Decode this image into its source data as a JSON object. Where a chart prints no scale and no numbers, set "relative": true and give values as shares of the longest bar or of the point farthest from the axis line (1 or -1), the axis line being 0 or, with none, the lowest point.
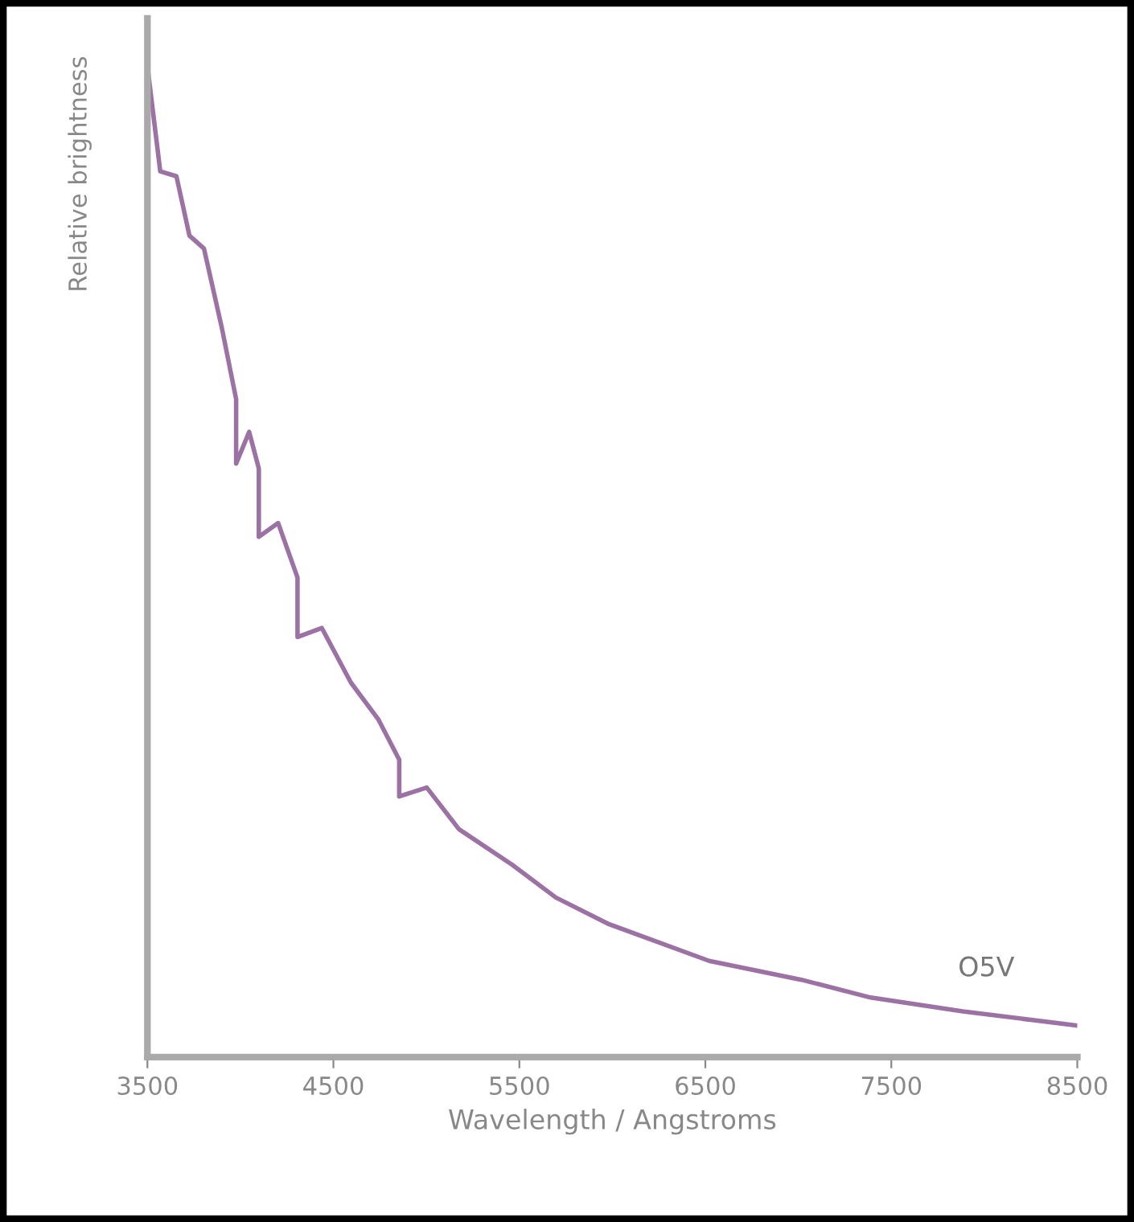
{
  "chart_data": {
    "type": "line",
    "relative": true,
    "xlabel": "Wavelength / Angstroms",
    "ylabel": "Relative brightness",
    "xlim": [
      3500,
      8500
    ],
    "xticks": [
      3500,
      4500,
      5500,
      6500,
      7500,
      8500
    ],
    "grid": false,
    "legend": false,
    "marker": "none",
    "line_style": "solid",
    "tick_labels": "x",
    "series": [
      {
        "name": "O5V",
        "color": "#9c72a4",
        "x": [
          3500,
          3569,
          3656,
          3726,
          3804,
          3899,
          3977,
          3977,
          4047,
          4099,
          4099,
          4203,
          4307,
          4307,
          4438,
          4594,
          4741,
          4854,
          4854,
          5002,
          5175,
          5462,
          5696,
          5983,
          6521,
          7016,
          7389,
          7884,
          8491
        ],
        "values": [
          1.0,
          0.894,
          0.889,
          0.829,
          0.816,
          0.737,
          0.664,
          0.599,
          0.631,
          0.594,
          0.525,
          0.539,
          0.484,
          0.424,
          0.433,
          0.378,
          0.341,
          0.3,
          0.263,
          0.272,
          0.23,
          0.194,
          0.161,
          0.134,
          0.097,
          0.078,
          0.06,
          0.046,
          0.032
        ]
      }
    ]
  }
}
